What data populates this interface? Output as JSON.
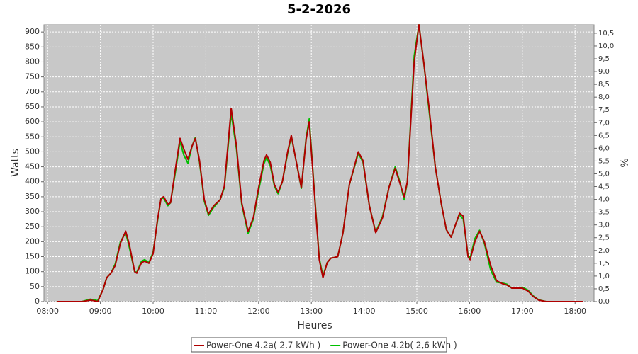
{
  "chart_data": {
    "type": "line",
    "title": "5-2-2026",
    "x_label": "Heures",
    "y_label": "Watts",
    "y2_label": "%",
    "grid": true,
    "legend": "bottom",
    "x": [
      8.17,
      8.65,
      8.75,
      8.81,
      8.88,
      8.95,
      9.05,
      9.12,
      9.2,
      9.28,
      9.38,
      9.48,
      9.55,
      9.65,
      9.69,
      9.78,
      9.84,
      9.92,
      10.0,
      10.08,
      10.15,
      10.2,
      10.28,
      10.33,
      10.42,
      10.51,
      10.58,
      10.66,
      10.74,
      10.8,
      10.88,
      10.97,
      11.05,
      11.15,
      11.27,
      11.35,
      11.48,
      11.58,
      11.68,
      11.8,
      11.9,
      12.0,
      12.1,
      12.15,
      12.22,
      12.3,
      12.37,
      12.45,
      12.55,
      12.62,
      12.7,
      12.81,
      12.9,
      12.96,
      13.05,
      13.15,
      13.22,
      13.3,
      13.37,
      13.5,
      13.6,
      13.72,
      13.89,
      13.98,
      14.1,
      14.22,
      14.35,
      14.47,
      14.59,
      14.67,
      14.76,
      14.82,
      14.95,
      15.04,
      15.13,
      15.23,
      15.35,
      15.46,
      15.56,
      15.65,
      15.74,
      15.81,
      15.88,
      15.97,
      16.01,
      16.1,
      16.19,
      16.28,
      16.4,
      16.51,
      16.62,
      16.71,
      16.8,
      16.9,
      17.0,
      17.11,
      17.2,
      17.31,
      17.45,
      18.15
    ],
    "series": [
      {
        "name": "Power-One 4.2a( 2,7 kWh )",
        "color": "#b00000",
        "values": [
          0,
          0,
          3,
          5,
          3,
          0,
          40,
          80,
          95,
          120,
          195,
          235,
          190,
          100,
          95,
          130,
          135,
          128,
          160,
          270,
          345,
          350,
          325,
          330,
          440,
          545,
          510,
          475,
          520,
          545,
          470,
          340,
          293,
          320,
          340,
          385,
          645,
          520,
          330,
          235,
          280,
          380,
          470,
          490,
          465,
          390,
          365,
          400,
          500,
          555,
          480,
          380,
          540,
          600,
          380,
          140,
          80,
          130,
          145,
          150,
          230,
          390,
          500,
          470,
          320,
          230,
          280,
          380,
          445,
          400,
          350,
          400,
          800,
          924,
          800,
          650,
          450,
          330,
          240,
          215,
          260,
          295,
          285,
          150,
          140,
          200,
          235,
          200,
          120,
          70,
          60,
          55,
          45,
          45,
          45,
          35,
          18,
          5,
          0,
          0
        ]
      },
      {
        "name": "Power-One 4.2b( 2,6 kWh )",
        "color": "#00c000",
        "values": [
          0,
          0,
          5,
          8,
          6,
          3,
          40,
          80,
          95,
          125,
          200,
          230,
          180,
          100,
          98,
          135,
          140,
          130,
          165,
          265,
          345,
          345,
          320,
          330,
          430,
          535,
          490,
          462,
          520,
          548,
          465,
          335,
          288,
          315,
          340,
          380,
          628,
          510,
          325,
          228,
          275,
          370,
          460,
          480,
          455,
          385,
          360,
          400,
          495,
          552,
          480,
          378,
          545,
          610,
          385,
          145,
          85,
          130,
          145,
          150,
          230,
          390,
          495,
          465,
          320,
          232,
          285,
          380,
          450,
          405,
          340,
          400,
          820,
          924,
          800,
          640,
          450,
          330,
          240,
          215,
          260,
          290,
          275,
          155,
          145,
          210,
          238,
          195,
          105,
          65,
          62,
          58,
          45,
          47,
          48,
          38,
          20,
          6,
          0,
          0
        ]
      }
    ],
    "xlim": [
      7.93,
      18.36
    ],
    "xticks": [
      {
        "value": 8,
        "label": "08:00"
      },
      {
        "value": 9,
        "label": "09:00"
      },
      {
        "value": 10,
        "label": "10:00"
      },
      {
        "value": 11,
        "label": "11:00"
      },
      {
        "value": 12,
        "label": "12:00"
      },
      {
        "value": 13,
        "label": "13:00"
      },
      {
        "value": 14,
        "label": "14:00"
      },
      {
        "value": 15,
        "label": "15:00"
      },
      {
        "value": 16,
        "label": "16:00"
      },
      {
        "value": 17,
        "label": "17:00"
      },
      {
        "value": 18,
        "label": "18:00"
      }
    ],
    "ylim": [
      0,
      924
    ],
    "yticks": [
      0,
      50,
      100,
      150,
      200,
      250,
      300,
      350,
      400,
      450,
      500,
      550,
      600,
      650,
      700,
      750,
      800,
      850,
      900
    ],
    "y2lim": [
      0,
      10.83
    ],
    "y2ticks": [
      {
        "value": 0,
        "label": "0,0"
      },
      {
        "value": 0.5,
        "label": "0,5"
      },
      {
        "value": 1,
        "label": "1,0"
      },
      {
        "value": 1.5,
        "label": "1,5"
      },
      {
        "value": 2,
        "label": "2,0"
      },
      {
        "value": 2.5,
        "label": "2,5"
      },
      {
        "value": 3,
        "label": "3,0"
      },
      {
        "value": 3.5,
        "label": "3,5"
      },
      {
        "value": 4,
        "label": "4,0"
      },
      {
        "value": 4.5,
        "label": "4,5"
      },
      {
        "value": 5,
        "label": "5,0"
      },
      {
        "value": 5.5,
        "label": "5,5"
      },
      {
        "value": 6,
        "label": "6,0"
      },
      {
        "value": 6.5,
        "label": "6,5"
      },
      {
        "value": 7,
        "label": "7,0"
      },
      {
        "value": 7.5,
        "label": "7,5"
      },
      {
        "value": 8,
        "label": "8,0"
      },
      {
        "value": 8.5,
        "label": "8,5"
      },
      {
        "value": 9,
        "label": "9,0"
      },
      {
        "value": 9.5,
        "label": "9,5"
      },
      {
        "value": 10,
        "label": "10,0"
      },
      {
        "value": 10.5,
        "label": "10,5"
      }
    ]
  }
}
